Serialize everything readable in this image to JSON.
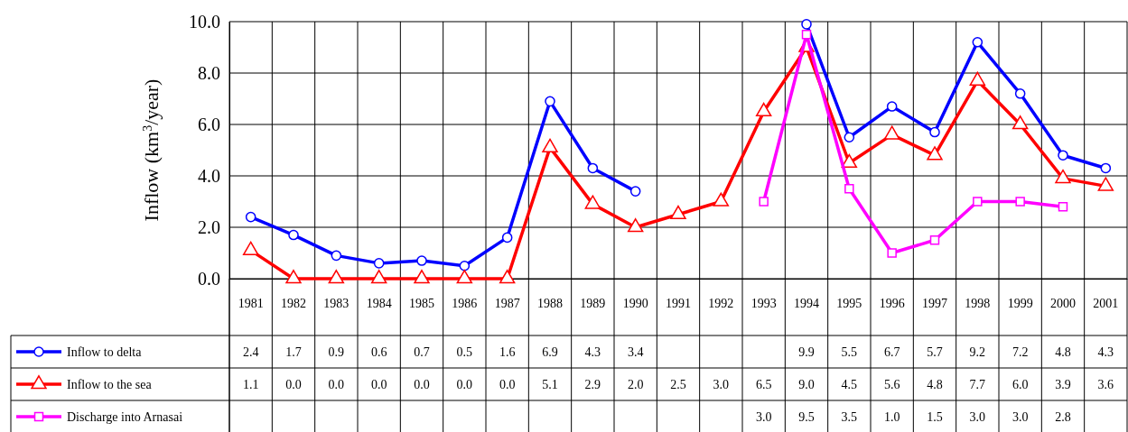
{
  "chart_data": {
    "type": "line",
    "ylabel": "Inflow (km$^{3}$/year)",
    "categories": [
      "1981",
      "1982",
      "1983",
      "1984",
      "1985",
      "1986",
      "1987",
      "1988",
      "1989",
      "1990",
      "1991",
      "1992",
      "1993",
      "1994",
      "1995",
      "1996",
      "1997",
      "1998",
      "1999",
      "2000",
      "2001"
    ],
    "series": [
      {
        "name": "Inflow to delta",
        "color": "#0000ff",
        "marker": "circle",
        "values": [
          2.4,
          1.7,
          0.9,
          0.6,
          0.7,
          0.5,
          1.6,
          6.9,
          4.3,
          3.4,
          null,
          null,
          null,
          9.9,
          5.5,
          6.7,
          5.7,
          9.2,
          7.2,
          4.8,
          4.3
        ],
        "value_labels": [
          "2.4",
          "1.7",
          "0.9",
          "0.6",
          "0.7",
          "0.5",
          "1.6",
          "6.9",
          "4.3",
          "3.4",
          null,
          null,
          null,
          "9.9",
          "5.5",
          "6.7",
          "5.7",
          "9.2",
          "7.2",
          "4.8",
          "4.3"
        ]
      },
      {
        "name": "Inflow to the sea",
        "color": "#ff0000",
        "marker": "triangle",
        "values": [
          1.1,
          0.0,
          0.0,
          0.0,
          0.0,
          0.0,
          0.0,
          5.1,
          2.9,
          2.0,
          2.5,
          3.0,
          6.5,
          9.0,
          4.5,
          5.6,
          4.8,
          7.7,
          6.0,
          3.9,
          3.6
        ],
        "value_labels": [
          "1.1",
          "0.0",
          "0.0",
          "0.0",
          "0.0",
          "0.0",
          "0.0",
          "5.1",
          "2.9",
          "2.0",
          "2.5",
          "3.0",
          "6.5",
          "9.0",
          "4.5",
          "5.6",
          "4.8",
          "7.7",
          "6.0",
          "3.9",
          "3.6"
        ]
      },
      {
        "name": "Discharge into Arnasai",
        "color": "#ff00ff",
        "marker": "square",
        "values": [
          null,
          null,
          null,
          null,
          null,
          null,
          null,
          null,
          null,
          null,
          null,
          null,
          3.0,
          9.5,
          3.5,
          1.0,
          1.5,
          3.0,
          3.0,
          2.8,
          null
        ],
        "value_labels": [
          null,
          null,
          null,
          null,
          null,
          null,
          null,
          null,
          null,
          null,
          null,
          null,
          "3.0",
          "9.5",
          "3.5",
          "1.0",
          "1.5",
          "3.0",
          "3.0",
          "2.8",
          null
        ]
      }
    ],
    "ylim": [
      0,
      10
    ],
    "yticks": [
      {
        "value": 0,
        "label": "0.0"
      },
      {
        "value": 2,
        "label": "2.0"
      },
      {
        "value": 4,
        "label": "4.0"
      },
      {
        "value": 6,
        "label": "6.0"
      },
      {
        "value": 8,
        "label": "8.0"
      },
      {
        "value": 10,
        "label": "10.0"
      }
    ],
    "grid": true,
    "legend": "bottom left",
    "line_style": "solid"
  }
}
